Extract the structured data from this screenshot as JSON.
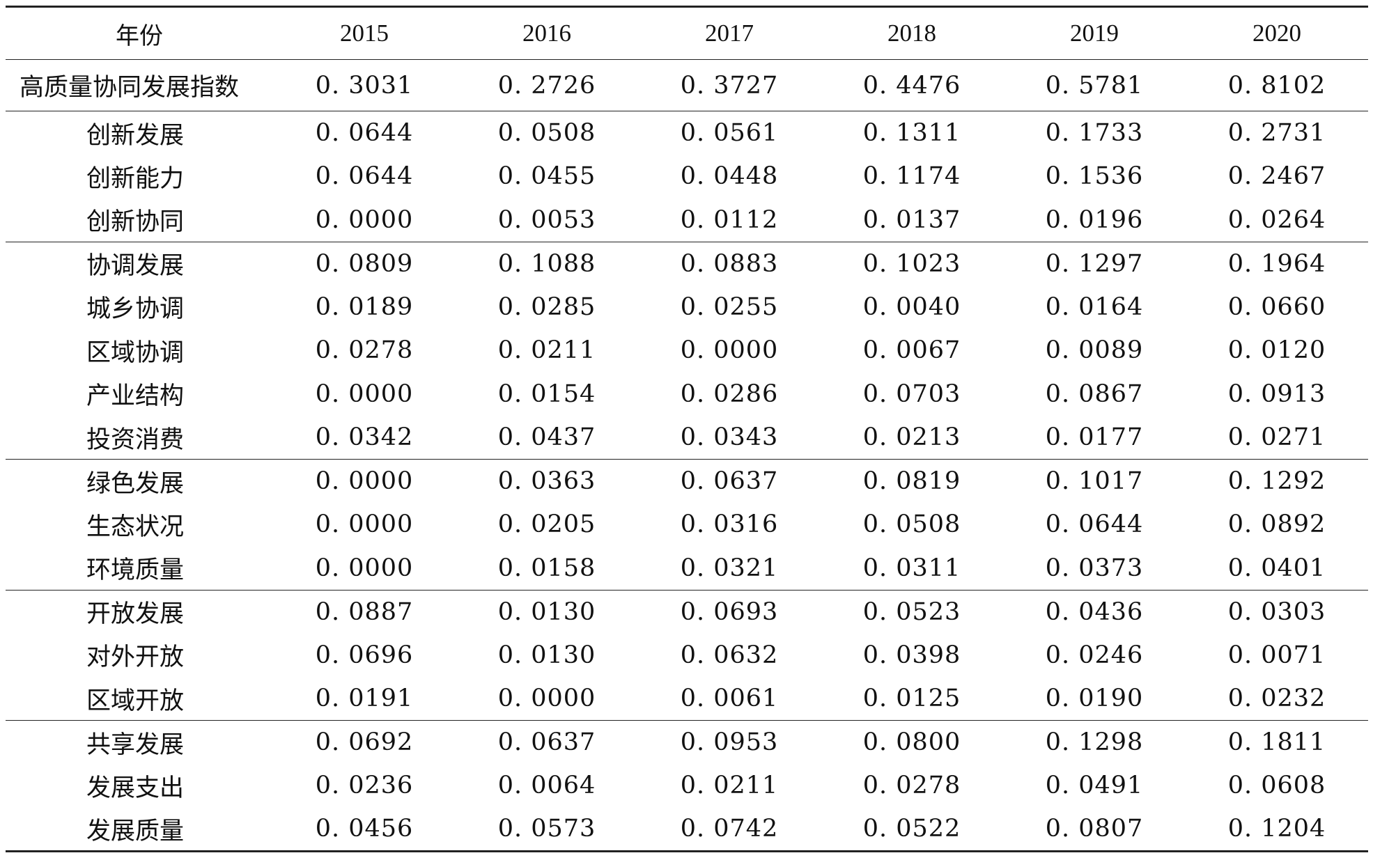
{
  "table": {
    "header": {
      "label": "年份",
      "years": [
        "2015",
        "2016",
        "2017",
        "2018",
        "2019",
        "2020"
      ]
    },
    "rows": [
      {
        "label": "高质量协同发展指数",
        "values": [
          "0. 3031",
          "0. 2726",
          "0. 3727",
          "0. 4476",
          "0. 5781",
          "0. 8102"
        ]
      },
      {
        "label": "创新发展",
        "values": [
          "0. 0644",
          "0. 0508",
          "0. 0561",
          "0. 1311",
          "0. 1733",
          "0. 2731"
        ]
      },
      {
        "label": "创新能力",
        "values": [
          "0. 0644",
          "0. 0455",
          "0. 0448",
          "0. 1174",
          "0. 1536",
          "0. 2467"
        ]
      },
      {
        "label": "创新协同",
        "values": [
          "0. 0000",
          "0. 0053",
          "0. 0112",
          "0. 0137",
          "0. 0196",
          "0. 0264"
        ]
      },
      {
        "label": "协调发展",
        "values": [
          "0. 0809",
          "0. 1088",
          "0. 0883",
          "0. 1023",
          "0. 1297",
          "0. 1964"
        ]
      },
      {
        "label": "城乡协调",
        "values": [
          "0. 0189",
          "0. 0285",
          "0. 0255",
          "0. 0040",
          "0. 0164",
          "0. 0660"
        ]
      },
      {
        "label": "区域协调",
        "values": [
          "0. 0278",
          "0. 0211",
          "0. 0000",
          "0. 0067",
          "0. 0089",
          "0. 0120"
        ]
      },
      {
        "label": "产业结构",
        "values": [
          "0. 0000",
          "0. 0154",
          "0. 0286",
          "0. 0703",
          "0. 0867",
          "0. 0913"
        ]
      },
      {
        "label": "投资消费",
        "values": [
          "0. 0342",
          "0. 0437",
          "0. 0343",
          "0. 0213",
          "0. 0177",
          "0. 0271"
        ]
      },
      {
        "label": "绿色发展",
        "values": [
          "0. 0000",
          "0. 0363",
          "0. 0637",
          "0. 0819",
          "0. 1017",
          "0. 1292"
        ]
      },
      {
        "label": "生态状况",
        "values": [
          "0. 0000",
          "0. 0205",
          "0. 0316",
          "0. 0508",
          "0. 0644",
          "0. 0892"
        ]
      },
      {
        "label": "环境质量",
        "values": [
          "0. 0000",
          "0. 0158",
          "0. 0321",
          "0. 0311",
          "0. 0373",
          "0. 0401"
        ]
      },
      {
        "label": "开放发展",
        "values": [
          "0. 0887",
          "0. 0130",
          "0. 0693",
          "0. 0523",
          "0. 0436",
          "0. 0303"
        ]
      },
      {
        "label": "对外开放",
        "values": [
          "0. 0696",
          "0. 0130",
          "0. 0632",
          "0. 0398",
          "0. 0246",
          "0. 0071"
        ]
      },
      {
        "label": "区域开放",
        "values": [
          "0. 0191",
          "0. 0000",
          "0. 0061",
          "0. 0125",
          "0. 0190",
          "0. 0232"
        ]
      },
      {
        "label": "共享发展",
        "values": [
          "0. 0692",
          "0. 0637",
          "0. 0953",
          "0. 0800",
          "0. 1298",
          "0. 1811"
        ]
      },
      {
        "label": "发展支出",
        "values": [
          "0. 0236",
          "0. 0064",
          "0. 0211",
          "0. 0278",
          "0. 0491",
          "0. 0608"
        ]
      },
      {
        "label": "发展质量",
        "values": [
          "0. 0456",
          "0. 0573",
          "0. 0742",
          "0. 0522",
          "0. 0807",
          "0. 1204"
        ]
      }
    ]
  }
}
